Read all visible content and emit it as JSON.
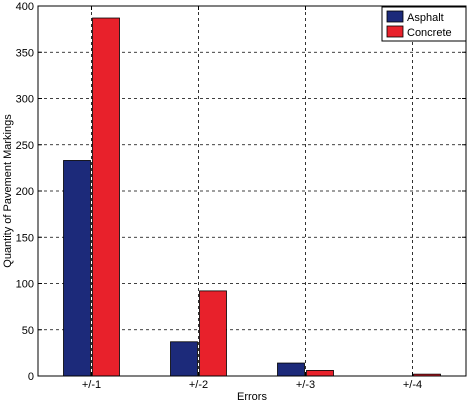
{
  "chart_data": {
    "type": "bar",
    "categories": [
      "+/-1",
      "+/-2",
      "+/-3",
      "+/-4"
    ],
    "series": [
      {
        "name": "Asphalt",
        "color": "#1c2a7a",
        "values": [
          233,
          37,
          14,
          0
        ]
      },
      {
        "name": "Concrete",
        "color": "#e8212b",
        "values": [
          387,
          92,
          6,
          2
        ]
      }
    ],
    "xlabel": "Errors",
    "ylabel": "Quantity of Pavement Markings",
    "ylim": [
      0,
      400
    ],
    "yticks": [
      0,
      50,
      100,
      150,
      200,
      250,
      300,
      350,
      400
    ],
    "grid": true,
    "legend_position": "top-right"
  }
}
